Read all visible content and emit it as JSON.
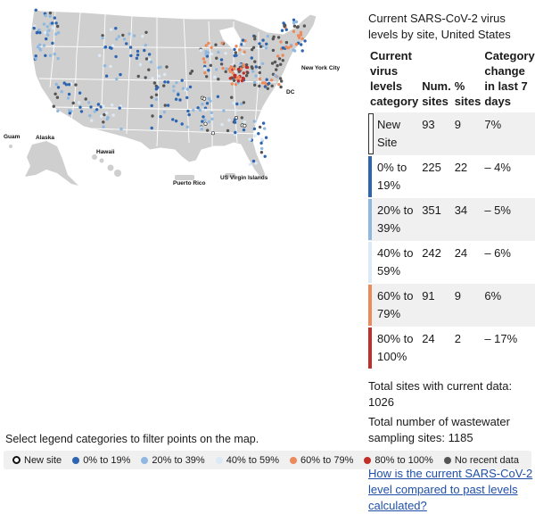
{
  "map": {
    "labels": {
      "new_york": "New York City",
      "dc": "DC",
      "guam": "Guam",
      "alaska": "Alaska",
      "hawaii": "Hawaii",
      "puerto_rico": "Puerto Rico",
      "virgin_islands": "US Virgin Islands"
    },
    "land_color": "#cfcfcf",
    "border_color": "#ffffff"
  },
  "table": {
    "title": "Current SARS-CoV-2 virus levels by site, United States",
    "headers": {
      "category": "Current virus levels category",
      "num_sites": "Num. sites",
      "pct_sites": "% sites",
      "change": "Category change in last 7 days"
    },
    "rows": [
      {
        "category": "New Site",
        "num": "93",
        "pct": "9",
        "change": "7%",
        "color": "#ffffff"
      },
      {
        "category": "0% to 19%",
        "num": "225",
        "pct": "22",
        "change": "– 4%",
        "color": "#2e65b0"
      },
      {
        "category": "20% to 39%",
        "num": "351",
        "pct": "34",
        "change": "– 5%",
        "color": "#8fb8e0"
      },
      {
        "category": "40% to 59%",
        "num": "242",
        "pct": "24",
        "change": "– 6%",
        "color": "#dceaf7"
      },
      {
        "category": "60% to 79%",
        "num": "91",
        "pct": "9",
        "change": "6%",
        "color": "#ec8a5c"
      },
      {
        "category": "80% to 100%",
        "num": "24",
        "pct": "2",
        "change": "– 17%",
        "color": "#c0302a"
      }
    ]
  },
  "stats": {
    "current_data": "Total sites with current data: 1026",
    "total_sampling": "Total number of wastewater sampling sites: 1185"
  },
  "link_text": "How is the current SARS-CoV-2 level compared to past levels calculated?",
  "filter_label": "Select legend categories to filter points on the map.",
  "legend": [
    {
      "label": "New site",
      "color": "#ffffff",
      "icon": "ring"
    },
    {
      "label": "0% to 19%",
      "color": "#2e65b0",
      "icon": "dot"
    },
    {
      "label": "20% to 39%",
      "color": "#8fb8e0",
      "icon": "dot"
    },
    {
      "label": "40% to 59%",
      "color": "#dceaf7",
      "icon": "dot"
    },
    {
      "label": "60% to 79%",
      "color": "#ec8a5c",
      "icon": "dot"
    },
    {
      "label": "80% to 100%",
      "color": "#c0302a",
      "icon": "dot"
    },
    {
      "label": "No recent data",
      "color": "#555555",
      "icon": "dot"
    }
  ]
}
